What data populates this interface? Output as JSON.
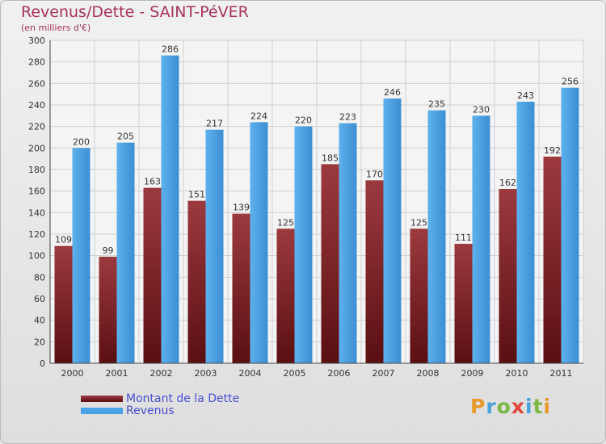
{
  "chart_data": {
    "type": "bar",
    "title": "Revenus/Dette - SAINT-PéVER",
    "subtitle": "(en milliers d'€)",
    "categories": [
      "2000",
      "2001",
      "2002",
      "2003",
      "2004",
      "2005",
      "2006",
      "2007",
      "2008",
      "2009",
      "2010",
      "2011"
    ],
    "series": [
      {
        "name": "Montant de la Dette",
        "values": [
          109,
          99,
          163,
          151,
          139,
          125,
          185,
          170,
          125,
          111,
          162,
          192
        ],
        "color": "#8b2a2e"
      },
      {
        "name": "Revenus",
        "values": [
          200,
          205,
          286,
          217,
          224,
          220,
          223,
          246,
          235,
          230,
          243,
          256
        ],
        "color": "#4aa3e6"
      }
    ],
    "ylim": [
      0,
      300
    ],
    "yticks": [
      0,
      20,
      40,
      60,
      80,
      100,
      120,
      140,
      160,
      180,
      200,
      220,
      240,
      260,
      280,
      300
    ],
    "grid": true,
    "legend": "bottom-left"
  },
  "logo": {
    "letters": [
      "P",
      "r",
      "o",
      "x",
      "i",
      "t",
      "i"
    ]
  }
}
